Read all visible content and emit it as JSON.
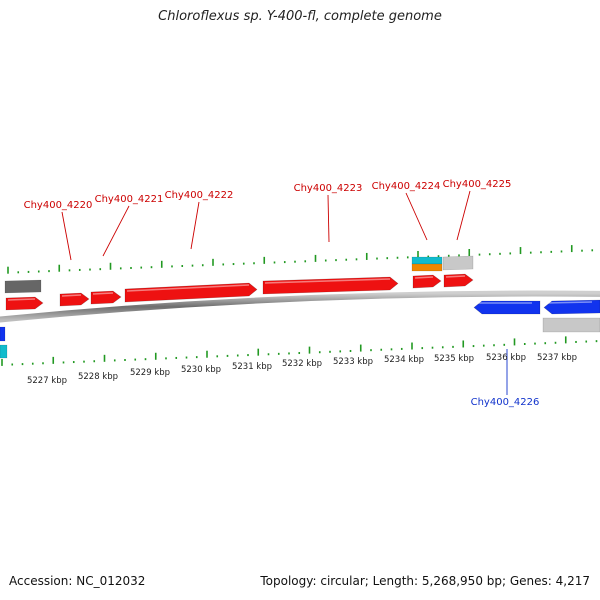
{
  "title": "Chloroflexus sp. Y-400-fl, complete genome",
  "footer": {
    "accession": "Accession: NC_012032",
    "info": "Topology: circular; Length: 5,268,950 bp; Genes: 4,217"
  },
  "colors": {
    "forward_gene": "#ee1111",
    "reverse_gene": "#1133ee",
    "cyan_feature": "#11bbcc",
    "orange_feature": "#ee8800",
    "gray_feature": "#c8c8c8",
    "dark_gray_feature": "#666666",
    "tick": "#229922",
    "forward_label": "#cc0000",
    "reverse_label": "#1133cc",
    "backbone": "#888888"
  },
  "axis": {
    "unit": "kbp",
    "labels": [
      "5227 kbp",
      "5228 kbp",
      "5229 kbp",
      "5230 kbp",
      "5231 kbp",
      "5232 kbp",
      "5233 kbp",
      "5234 kbp",
      "5235 kbp",
      "5236 kbp",
      "5237 kbp"
    ]
  },
  "gene_labels": [
    {
      "text": "Chy400_4220",
      "strand": "forward"
    },
    {
      "text": "Chy400_4221",
      "strand": "forward"
    },
    {
      "text": "Chy400_4222",
      "strand": "forward"
    },
    {
      "text": "Chy400_4223",
      "strand": "forward"
    },
    {
      "text": "Chy400_4224",
      "strand": "forward"
    },
    {
      "text": "Chy400_4225",
      "strand": "forward"
    },
    {
      "text": "Chy400_4226",
      "strand": "reverse"
    }
  ]
}
